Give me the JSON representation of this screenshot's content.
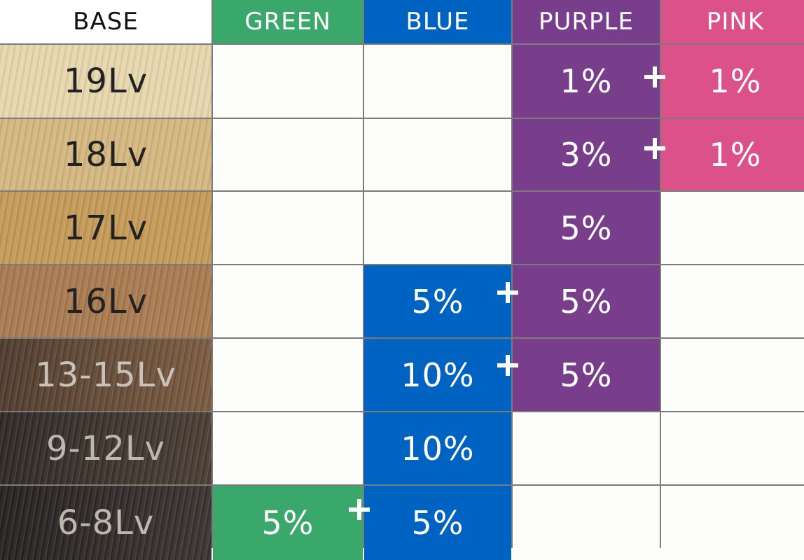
{
  "headers": {
    "base": "BASE",
    "green": "GREEN",
    "blue": "BLUE",
    "purple": "PURPLE",
    "pink": "PINK"
  },
  "rows": [
    {
      "level": "19Lv",
      "green": "",
      "blue": "",
      "purple": "1%",
      "pink": "1%"
    },
    {
      "level": "18Lv",
      "green": "",
      "blue": "",
      "purple": "3%",
      "pink": "1%"
    },
    {
      "level": "17Lv",
      "green": "",
      "blue": "",
      "purple": "5%",
      "pink": ""
    },
    {
      "level": "16Lv",
      "green": "",
      "blue": "5%",
      "purple": "5%",
      "pink": ""
    },
    {
      "level": "13-15Lv",
      "green": "",
      "blue": "10%",
      "purple": "5%",
      "pink": ""
    },
    {
      "level": "9-12Lv",
      "green": "",
      "blue": "10%",
      "purple": "",
      "pink": ""
    },
    {
      "level": "6-8Lv",
      "green": "5%",
      "blue": "5%",
      "purple": "",
      "pink": ""
    }
  ],
  "colors": {
    "green": "#3aa86b",
    "blue": "#0062c1",
    "purple": "#793e8b",
    "pink": "#dc518a"
  },
  "plus_icon": "plus-icon"
}
